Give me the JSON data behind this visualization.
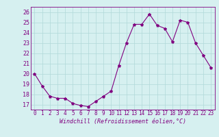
{
  "x": [
    0,
    1,
    2,
    3,
    4,
    5,
    6,
    7,
    8,
    9,
    10,
    11,
    12,
    13,
    14,
    15,
    16,
    17,
    18,
    19,
    20,
    21,
    22,
    23
  ],
  "y": [
    20.0,
    18.8,
    17.8,
    17.6,
    17.6,
    17.1,
    16.9,
    16.8,
    17.3,
    17.8,
    18.3,
    20.8,
    23.0,
    24.8,
    24.8,
    25.8,
    24.7,
    24.4,
    23.1,
    25.2,
    25.0,
    23.0,
    21.8,
    20.6
  ],
  "line_color": "#800080",
  "marker": "*",
  "marker_size": 3,
  "bg_color": "#d6f0f0",
  "grid_color": "#b0d8d8",
  "xlabel": "Windchill (Refroidissement éolien,°C)",
  "ylim": [
    16.5,
    26.5
  ],
  "xlim": [
    -0.5,
    23.5
  ],
  "yticks": [
    17,
    18,
    19,
    20,
    21,
    22,
    23,
    24,
    25,
    26
  ],
  "xticks": [
    0,
    1,
    2,
    3,
    4,
    5,
    6,
    7,
    8,
    9,
    10,
    11,
    12,
    13,
    14,
    15,
    16,
    17,
    18,
    19,
    20,
    21,
    22,
    23
  ]
}
